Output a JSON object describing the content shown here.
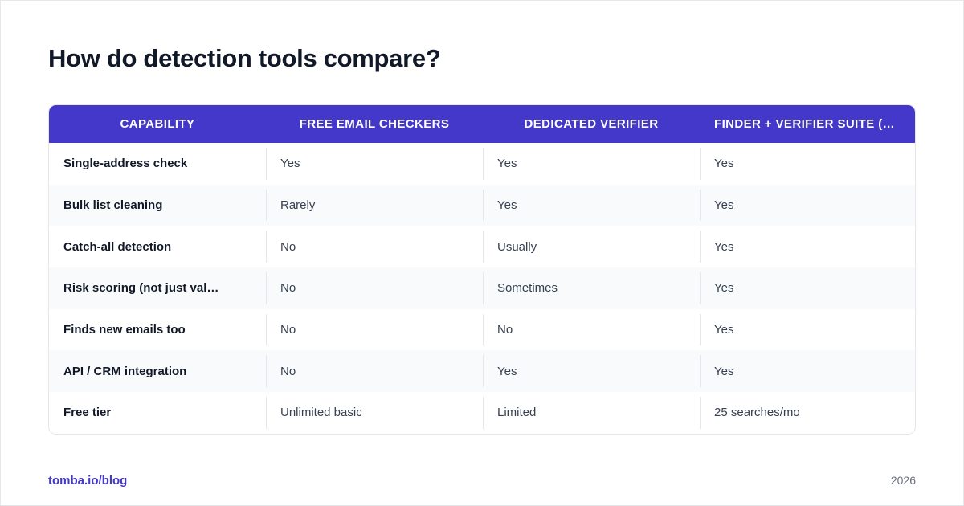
{
  "title": "How do detection tools compare?",
  "colors": {
    "header_bg": "#4338ca",
    "accent": "#4338ca",
    "row_alt": "#f8fafc"
  },
  "table": {
    "headers": [
      "CAPABILITY",
      "FREE EMAIL CHECKERS",
      "DEDICATED VERIFIER",
      "FINDER + VERIFIER SUITE (E…"
    ],
    "rows": [
      [
        "Single-address check",
        "Yes",
        "Yes",
        "Yes"
      ],
      [
        "Bulk list cleaning",
        "Rarely",
        "Yes",
        "Yes"
      ],
      [
        "Catch-all detection",
        "No",
        "Usually",
        "Yes"
      ],
      [
        "Risk scoring (not just val…",
        "No",
        "Sometimes",
        "Yes"
      ],
      [
        "Finds new emails too",
        "No",
        "No",
        "Yes"
      ],
      [
        "API / CRM integration",
        "No",
        "Yes",
        "Yes"
      ],
      [
        "Free tier",
        "Unlimited basic",
        "Limited",
        "25 searches/mo"
      ]
    ]
  },
  "footer": {
    "source": "tomba.io/blog",
    "year": "2026"
  }
}
